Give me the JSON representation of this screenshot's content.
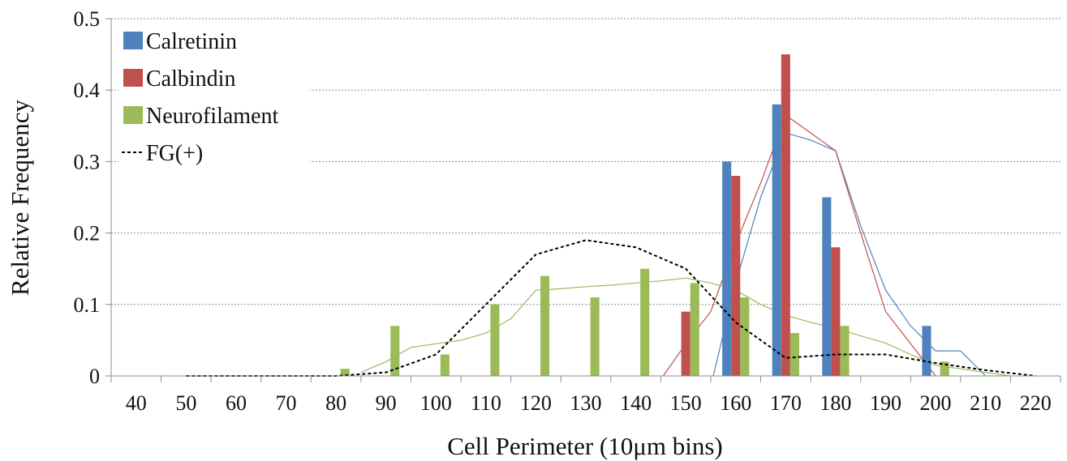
{
  "chart_data": {
    "type": "bar",
    "title": "",
    "xlabel": "Cell Perimeter (10μm bins)",
    "ylabel": "Relative Frequency",
    "ylim": [
      0,
      0.5
    ],
    "yticks": [
      "0",
      "0.1",
      "0.2",
      "0.3",
      "0.4",
      "0.5"
    ],
    "categories": [
      "40",
      "50",
      "60",
      "70",
      "80",
      "90",
      "100",
      "110",
      "120",
      "130",
      "140",
      "150",
      "160",
      "170",
      "180",
      "190",
      "200",
      "210",
      "220"
    ],
    "grid": "horizontal",
    "legend_position": "top-left",
    "colors": {
      "Calretinin": "#4f81bd",
      "Calbindin": "#c0504d",
      "Neurofilament": "#9bbb59",
      "FG(+)": "#000000"
    },
    "series": [
      {
        "name": "Calretinin",
        "kind": "bar",
        "values": [
          0,
          0,
          0,
          0,
          0,
          0,
          0,
          0,
          0,
          0,
          0,
          0,
          0.3,
          0.38,
          0.25,
          0,
          0.07,
          0,
          0
        ]
      },
      {
        "name": "Calbindin",
        "kind": "bar",
        "values": [
          0,
          0,
          0,
          0,
          0,
          0,
          0,
          0,
          0,
          0,
          0,
          0.09,
          0.28,
          0.45,
          0.18,
          0,
          0,
          0,
          0
        ]
      },
      {
        "name": "Neurofilament",
        "kind": "bar",
        "values": [
          0,
          0,
          0,
          0,
          0.01,
          0.07,
          0.03,
          0.1,
          0.14,
          0.11,
          0.15,
          0.13,
          0.11,
          0.06,
          0.07,
          0,
          0.02,
          0,
          0
        ]
      },
      {
        "name": "FG(+)",
        "kind": "line",
        "style": "dashed",
        "x": [
          50,
          60,
          70,
          80,
          90,
          100,
          110,
          120,
          130,
          140,
          150,
          160,
          170,
          180,
          190,
          200,
          210,
          220
        ],
        "values": [
          0,
          0,
          0,
          0,
          0.005,
          0.03,
          0.1,
          0.17,
          0.19,
          0.18,
          0.15,
          0.075,
          0.025,
          0.03,
          0.03,
          0.018,
          0.008,
          0
        ]
      }
    ],
    "trend_lines": [
      {
        "series": "Calretinin",
        "x": [
          155.5,
          160,
          165,
          170,
          175,
          180,
          185,
          190,
          195,
          200,
          205,
          210
        ],
        "values": [
          0,
          0.13,
          0.25,
          0.34,
          0.33,
          0.315,
          0.21,
          0.12,
          0.07,
          0.035,
          0.035,
          0
        ]
      },
      {
        "series": "Calbindin",
        "x": [
          145.5,
          150,
          155,
          160,
          165,
          170,
          175,
          180,
          185,
          190,
          195,
          200
        ],
        "values": [
          0,
          0.045,
          0.09,
          0.185,
          0.27,
          0.365,
          0.34,
          0.315,
          0.2,
          0.09,
          0.045,
          0
        ]
      },
      {
        "series": "Neurofilament",
        "x": [
          85,
          90,
          95,
          100,
          105,
          110,
          115,
          120,
          125,
          130,
          135,
          140,
          145,
          150,
          155,
          160,
          165,
          170,
          175,
          180,
          185,
          190,
          195,
          200,
          205,
          210,
          215
        ],
        "values": [
          0.005,
          0.02,
          0.04,
          0.045,
          0.05,
          0.06,
          0.08,
          0.12,
          0.122,
          0.125,
          0.127,
          0.13,
          0.133,
          0.137,
          0.13,
          0.12,
          0.1,
          0.085,
          0.075,
          0.067,
          0.056,
          0.046,
          0.03,
          0.015,
          0.01,
          0.005,
          0
        ]
      }
    ]
  }
}
